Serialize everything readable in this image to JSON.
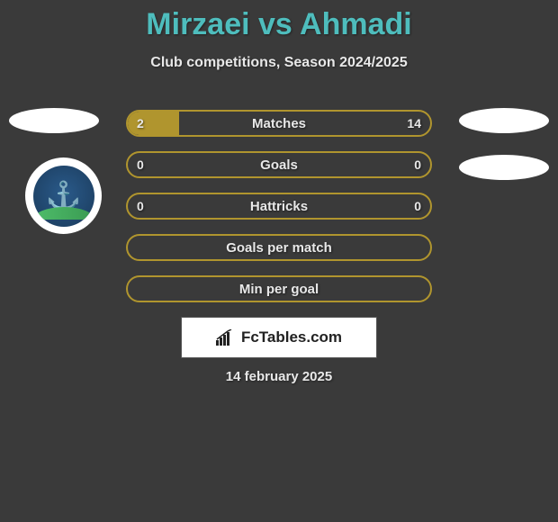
{
  "title": "Mirzaei vs Ahmadi",
  "subtitle": "Club competitions, Season 2024/2025",
  "date": "14 february 2025",
  "brand": "FcTables.com",
  "colors": {
    "title": "#4ebdbd",
    "bar_border": "#b0952e",
    "bar_fill": "#b0952e",
    "background": "#3a3a3a"
  },
  "bars": [
    {
      "label": "Matches",
      "left": "2",
      "right": "14",
      "left_pct": 17,
      "right_pct": 0
    },
    {
      "label": "Goals",
      "left": "0",
      "right": "0",
      "left_pct": 0,
      "right_pct": 0
    },
    {
      "label": "Hattricks",
      "left": "0",
      "right": "0",
      "left_pct": 0,
      "right_pct": 0
    },
    {
      "label": "Goals per match",
      "left": "",
      "right": "",
      "left_pct": 0,
      "right_pct": 0
    },
    {
      "label": "Min per goal",
      "left": "",
      "right": "",
      "left_pct": 0,
      "right_pct": 0
    }
  ]
}
